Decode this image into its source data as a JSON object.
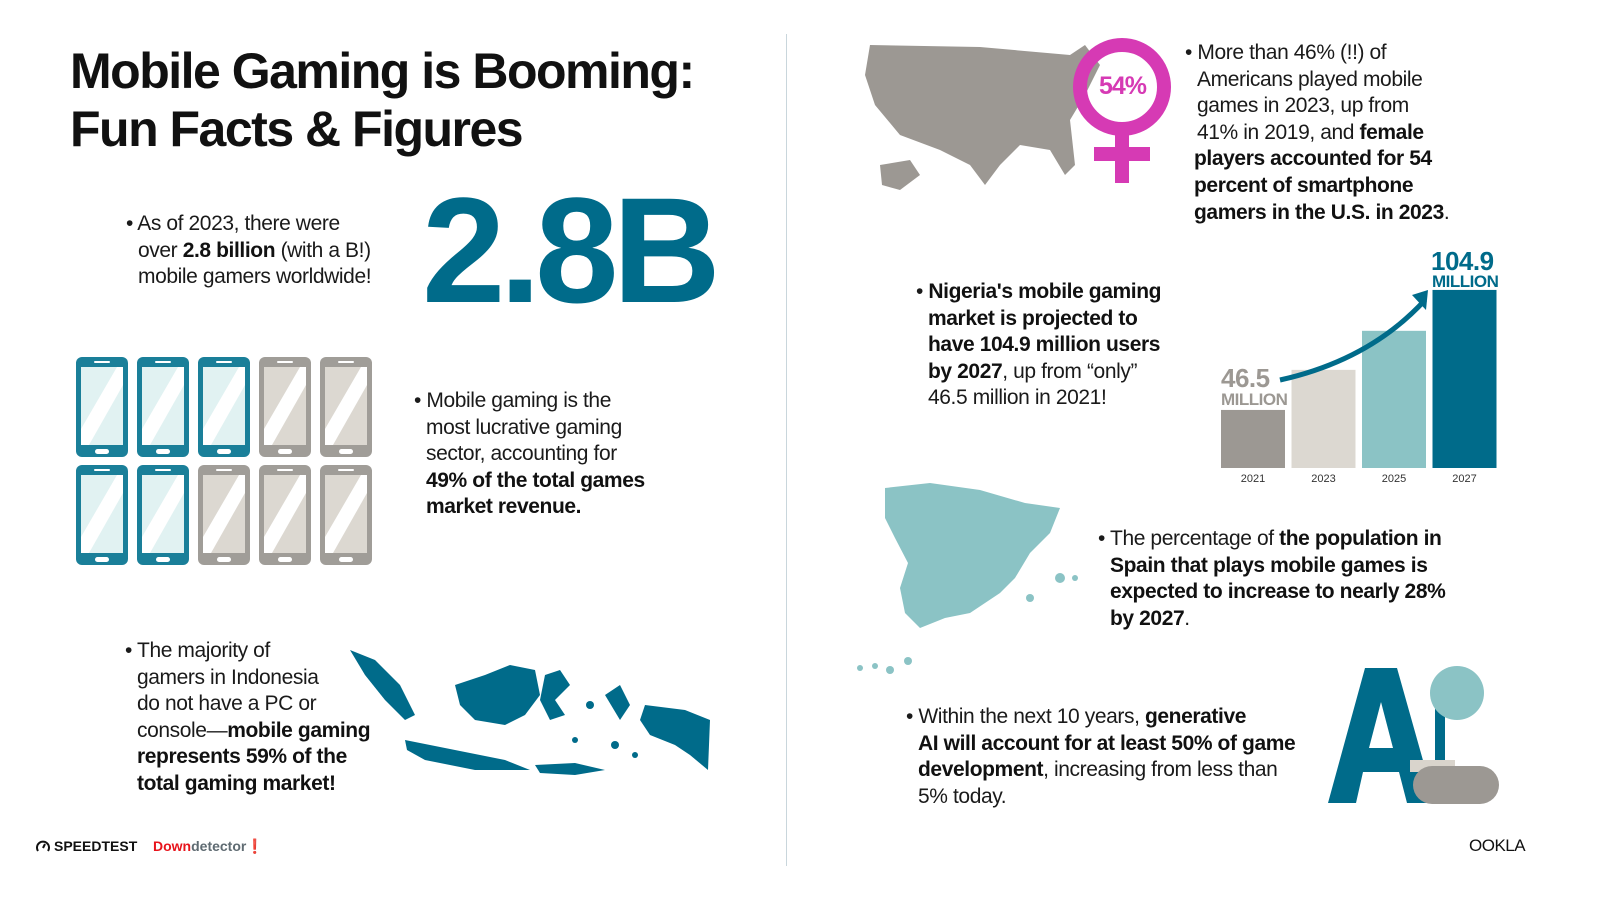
{
  "title": {
    "line1": "Mobile Gaming is Booming:",
    "line2": "Fun Facts & Figures"
  },
  "facts": {
    "gamers": {
      "t1": "As of 2023, there were",
      "t2": "over ",
      "b1": "2.8 billion",
      "t3": " (with a B!)",
      "t4": "mobile gamers worldwide!",
      "big": "2.8B"
    },
    "revenue": {
      "t1": "Mobile gaming is the",
      "t2": "most lucrative gaming",
      "t3": "sector, accounting for",
      "b1": "49% of the total games",
      "b2": "market revenue."
    },
    "indonesia": {
      "t1": "The majority of",
      "t2": "gamers in Indonesia",
      "t3": "do not have a PC or",
      "t4": "console—",
      "b1": "mobile gaming",
      "b2": "represents 59% of the",
      "b3": "total gaming market!"
    },
    "usa": {
      "t1": "More than 46% (!!) of",
      "t2": "Americans played mobile",
      "t3": "games in 2023, up from",
      "t4": "41% in 2019, and ",
      "b1": "female",
      "b2": "players accounted for 54",
      "b3": "percent of smartphone",
      "b4": "gamers in the U.S. in 2023",
      "t5": ".",
      "badge": "54%"
    },
    "nigeria": {
      "b1": "Nigeria's mobile gaming",
      "b2": "market is projected to",
      "b3": "have 104.9 million users",
      "b4": "by 2027",
      "t1": ", up from “only”",
      "t2": "46.5 million in 2021!"
    },
    "spain": {
      "t1": "The percentage of ",
      "b1": "the population in",
      "b2": "Spain that plays mobile games is",
      "b3": "expected to increase to nearly 28%",
      "b4": "by 2027",
      "t2": "."
    },
    "ai": {
      "t1": "Within the next 10 years, ",
      "b1": "generative",
      "b2": "AI will account for at least 50% of game",
      "b3": "development",
      "t2": ", increasing from less than",
      "t3": "5% today.",
      "logo": "AI"
    }
  },
  "phones": {
    "highlighted": 5,
    "total": 10,
    "colors": {
      "on": "#1a7f99",
      "off": "#a09d98"
    }
  },
  "chart_data": {
    "type": "bar",
    "categories": [
      "2021",
      "2023",
      "2025",
      "2027"
    ],
    "values": [
      46.5,
      66,
      85,
      104.9
    ],
    "labels": {
      "first_value": "46.5",
      "first_unit": "MILLION",
      "last_value": "104.9",
      "last_unit": "MILLION"
    },
    "colors": [
      "#9c9893",
      "#dcd8d1",
      "#8bc3c5",
      "#006b8a"
    ]
  },
  "colors": {
    "accent": "#006b8a",
    "female": "#d63ab4",
    "teal_light": "#8bc3c5",
    "gray": "#9c9893"
  },
  "footer": {
    "speedtest": "SPEEDTEST",
    "downdetector_a": "Down",
    "downdetector_b": "detector",
    "ookla": "OOKLA"
  }
}
